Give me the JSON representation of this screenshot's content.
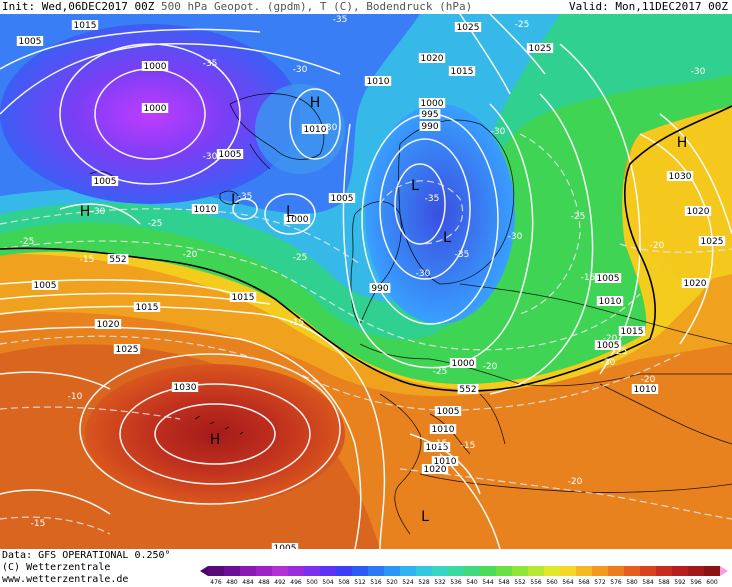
{
  "header": {
    "init_label": "Init:",
    "init_value": "Wed,06DEC2017 00Z",
    "description": "500 hPa Geopot. (gpdm), T (C), Bodendruck (hPa)",
    "valid_label": "Valid:",
    "valid_value": "Mon,11DEC2017 00Z"
  },
  "footer": {
    "data_line": "Data: GFS OPERATIONAL 0.250°",
    "copyright": "(C) Wetterzentrale",
    "website": "www.wetterzentrale.de"
  },
  "colorbar": {
    "ticks": [
      "476",
      "480",
      "484",
      "488",
      "492",
      "496",
      "500",
      "504",
      "508",
      "512",
      "516",
      "520",
      "524",
      "528",
      "532",
      "536",
      "540",
      "544",
      "548",
      "552",
      "556",
      "560",
      "564",
      "568",
      "572",
      "576",
      "580",
      "584",
      "588",
      "592",
      "596",
      "600"
    ]
  },
  "map": {
    "pressure_labels": [
      "1015",
      "1005",
      "1000",
      "1000",
      "1005",
      "1005",
      "1010",
      "1010",
      "1000",
      "1005",
      "1000",
      "995",
      "990",
      "1010",
      "1025",
      "1020",
      "1015",
      "1025",
      "1005",
      "1010",
      "1015",
      "1030",
      "1020",
      "1025",
      "1005",
      "1015",
      "1020",
      "1025",
      "1030",
      "1015",
      "1010",
      "990",
      "1000",
      "1005",
      "1010",
      "1015",
      "1020",
      "1005",
      "1010",
      "1020",
      "1005"
    ],
    "temperature_labels": [
      "-35",
      "-35",
      "-30",
      "-30",
      "-30",
      "-35",
      "-30",
      "-35",
      "-30",
      "-25",
      "-25",
      "-30",
      "-25",
      "-20",
      "-15",
      "-15",
      "-10",
      "-20",
      "-25",
      "-25",
      "-30",
      "-35",
      "-30",
      "-25",
      "-20",
      "-15",
      "-20",
      "-25",
      "-30",
      "-20",
      "-15",
      "-15",
      "-20",
      "-15"
    ],
    "geopotential_labels": [
      "552",
      "552"
    ],
    "pressure_centers": [
      {
        "label": "H",
        "kind": "high"
      },
      {
        "label": "H",
        "kind": "high"
      },
      {
        "label": "H",
        "kind": "high"
      },
      {
        "label": "L",
        "kind": "low"
      },
      {
        "label": "L",
        "kind": "low"
      },
      {
        "label": "L",
        "kind": "low"
      },
      {
        "label": "L",
        "kind": "low"
      },
      {
        "label": "H",
        "kind": "high"
      },
      {
        "label": "L",
        "kind": "low"
      }
    ]
  }
}
